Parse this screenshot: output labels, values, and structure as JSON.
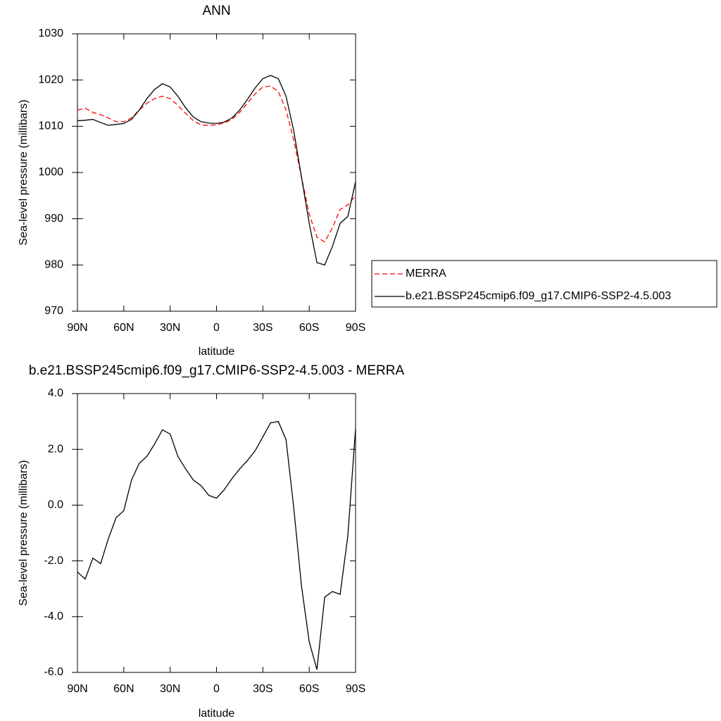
{
  "chart_data": [
    {
      "type": "line",
      "title": "ANN",
      "x_label": "latitude",
      "y_label": "Sea-level pressure (millibars)",
      "x": [
        90,
        85,
        80,
        75,
        70,
        65,
        60,
        55,
        50,
        45,
        40,
        35,
        30,
        25,
        20,
        15,
        10,
        5,
        0,
        -5,
        -10,
        -15,
        -20,
        -25,
        -30,
        -35,
        -40,
        -45,
        -50,
        -55,
        -60,
        -65,
        -70,
        -75,
        -80,
        -85,
        -90
      ],
      "series": [
        {
          "name": "MERRA",
          "color": "#ff0000",
          "style": "dashed",
          "values": [
            1013.5,
            1013.9,
            1013,
            1012.5,
            1011.8,
            1011,
            1011,
            1011.8,
            1013.5,
            1015,
            1016,
            1016.5,
            1016,
            1014.5,
            1012.8,
            1011.2,
            1010.3,
            1010.2,
            1010.3,
            1010.7,
            1011.5,
            1013,
            1015,
            1017,
            1018.5,
            1018.7,
            1017.5,
            1013.5,
            1007,
            999,
            991,
            986,
            985,
            988,
            992,
            993,
            995
          ]
        },
        {
          "name": "b.e21.BSSP245cmip6.f09_g17.CMIP6-SSP2-4.5.003",
          "color": "#000000",
          "style": "solid",
          "values": [
            1011.2,
            1011.3,
            1011.5,
            1010.8,
            1010.2,
            1010.4,
            1010.6,
            1011.5,
            1013.5,
            1016,
            1018,
            1019.2,
            1018.5,
            1016.5,
            1014,
            1012,
            1011,
            1010.7,
            1010.6,
            1010.9,
            1011.8,
            1013.5,
            1015.8,
            1018.3,
            1020.3,
            1021,
            1020.3,
            1016.5,
            1009,
            999,
            989,
            980.5,
            980,
            984,
            989,
            990.5,
            998
          ]
        }
      ],
      "xlim": [
        90,
        -90
      ],
      "xticks": [
        {
          "value": 90,
          "label": "90N"
        },
        {
          "value": 60,
          "label": "60N"
        },
        {
          "value": 30,
          "label": "30N"
        },
        0,
        {
          "value": -30,
          "label": "30S"
        },
        {
          "value": -60,
          "label": "60S"
        },
        {
          "value": -90,
          "label": "90S"
        }
      ],
      "ylim": [
        970,
        1030
      ],
      "yticks": [
        970,
        980,
        990,
        1000,
        1010,
        1020,
        1030
      ],
      "legend": "right"
    },
    {
      "type": "line",
      "title": "b.e21.BSSP245cmip6.f09_g17.CMIP6-SSP2-4.5.003 - MERRA",
      "x_label": "latitude",
      "y_label": "Sea-level pressure (millibars)",
      "x": [
        90,
        85,
        80,
        75,
        70,
        65,
        60,
        55,
        50,
        45,
        40,
        35,
        30,
        25,
        20,
        15,
        10,
        5,
        0,
        -5,
        -10,
        -15,
        -20,
        -25,
        -30,
        -35,
        -40,
        -45,
        -50,
        -55,
        -60,
        -65,
        -70,
        -75,
        -80,
        -85,
        -90
      ],
      "values": [
        -2.4,
        -2.65,
        -1.9,
        -2.1,
        -1.2,
        -0.45,
        -0.2,
        0.9,
        1.5,
        1.75,
        2.2,
        2.7,
        2.55,
        1.75,
        1.3,
        0.9,
        0.7,
        0.35,
        0.25,
        0.55,
        0.95,
        1.3,
        1.6,
        1.95,
        2.45,
        2.95,
        3.0,
        2.35,
        -0.1,
        -2.9,
        -4.9,
        -5.9,
        -3.3,
        -3.1,
        -3.2,
        -1.1,
        2.75
      ],
      "color": "#000000",
      "xlim": [
        90,
        -90
      ],
      "xticks": [
        {
          "value": 90,
          "label": "90N"
        },
        {
          "value": 60,
          "label": "60N"
        },
        {
          "value": 30,
          "label": "30N"
        },
        0,
        {
          "value": -30,
          "label": "30S"
        },
        {
          "value": -60,
          "label": "60S"
        },
        {
          "value": -90,
          "label": "90S"
        }
      ],
      "ylim": [
        -6,
        4
      ],
      "yticks": [
        {
          "value": -6,
          "label": "-6.0"
        },
        {
          "value": -4,
          "label": "-4.0"
        },
        {
          "value": -2,
          "label": "-2.0"
        },
        {
          "value": 0,
          "label": "0.0"
        },
        {
          "value": 2,
          "label": "2.0"
        },
        {
          "value": 4,
          "label": "4.0"
        }
      ]
    }
  ]
}
